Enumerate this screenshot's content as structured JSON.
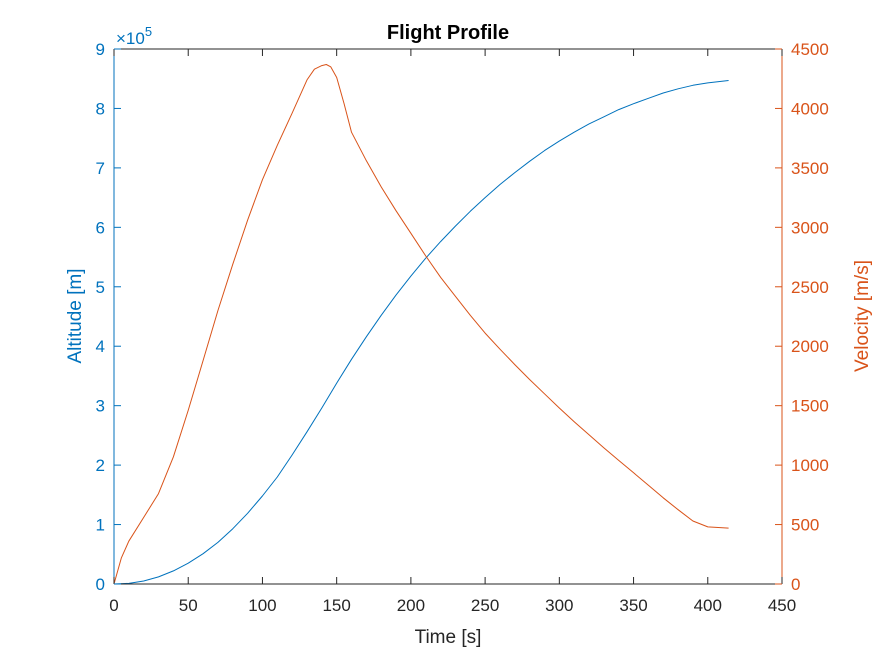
{
  "chart_data": {
    "type": "line",
    "title": "Flight Profile",
    "xlabel": "Time [s]",
    "xlim": [
      0,
      450
    ],
    "xticks": [
      0,
      50,
      100,
      150,
      200,
      250,
      300,
      350,
      400,
      450
    ],
    "grid": false,
    "legend": null,
    "axes": {
      "left": {
        "label": "Altitude [m]",
        "ylim": [
          0,
          9
        ],
        "ticks": [
          0,
          1,
          2,
          3,
          4,
          5,
          6,
          7,
          8,
          9
        ],
        "exponent_label": "×10",
        "exponent_power": "5",
        "color": "#0072BD"
      },
      "right": {
        "label": "Velocity [m/s]",
        "ylim": [
          0,
          4500
        ],
        "ticks": [
          0,
          500,
          1000,
          1500,
          2000,
          2500,
          3000,
          3500,
          4000,
          4500
        ],
        "color": "#D95319"
      }
    },
    "series": [
      {
        "axis": "left",
        "color": "#0072BD",
        "x": [
          0,
          10,
          20,
          30,
          40,
          50,
          60,
          70,
          80,
          90,
          100,
          110,
          120,
          130,
          140,
          150,
          160,
          170,
          180,
          190,
          200,
          210,
          220,
          230,
          240,
          250,
          260,
          270,
          280,
          290,
          300,
          310,
          320,
          330,
          340,
          350,
          360,
          370,
          380,
          390,
          400,
          414
        ],
        "values": [
          0,
          0.01,
          0.05,
          0.12,
          0.22,
          0.35,
          0.51,
          0.7,
          0.93,
          1.19,
          1.48,
          1.8,
          2.17,
          2.56,
          2.96,
          3.38,
          3.78,
          4.16,
          4.52,
          4.86,
          5.18,
          5.48,
          5.76,
          6.02,
          6.27,
          6.5,
          6.72,
          6.92,
          7.11,
          7.29,
          7.45,
          7.6,
          7.74,
          7.86,
          7.98,
          8.08,
          8.17,
          8.26,
          8.33,
          8.39,
          8.43,
          8.47
        ]
      },
      {
        "axis": "right",
        "color": "#D95319",
        "x": [
          0,
          5,
          10,
          20,
          30,
          40,
          50,
          60,
          70,
          80,
          90,
          100,
          110,
          120,
          130,
          135,
          140,
          143,
          146,
          150,
          155,
          160,
          170,
          180,
          190,
          200,
          210,
          220,
          230,
          240,
          250,
          260,
          270,
          280,
          290,
          300,
          310,
          320,
          330,
          340,
          350,
          360,
          370,
          380,
          390,
          400,
          414
        ],
        "values": [
          0,
          220,
          360,
          560,
          760,
          1070,
          1460,
          1880,
          2300,
          2690,
          3060,
          3400,
          3690,
          3960,
          4240,
          4330,
          4360,
          4370,
          4350,
          4260,
          4040,
          3800,
          3560,
          3340,
          3140,
          2950,
          2760,
          2580,
          2420,
          2260,
          2110,
          1975,
          1845,
          1720,
          1600,
          1480,
          1365,
          1255,
          1145,
          1040,
          935,
          830,
          725,
          625,
          530,
          480,
          470
        ]
      }
    ]
  }
}
